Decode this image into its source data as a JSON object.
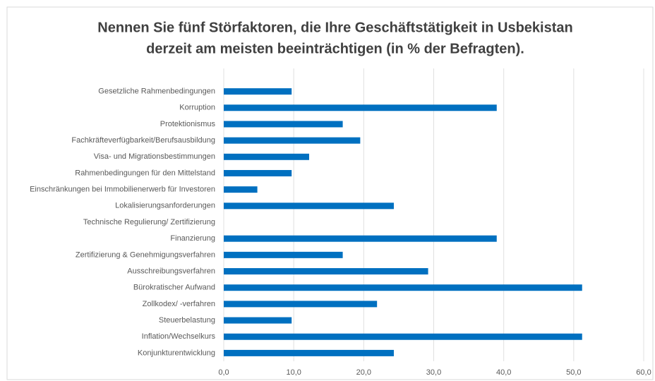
{
  "chart_data": {
    "type": "barh",
    "title": [
      "Nennen Sie fünf Störfaktoren, die Ihre Geschäftstätigkeit in Usbekistan",
      "derzeit am meisten beeinträchtigen (in % der Befragten)."
    ],
    "categories": [
      "Gesetzliche Rahmenbedingungen",
      "Korruption",
      "Protektionismus",
      "Fachkräfteverfügbarkeit/Berufsausbildung",
      "Visa- und Migrationsbestimmungen",
      "Rahmenbedingungen für den Mittelstand",
      "Einschränkungen bei Immobilienerwerb für Investoren",
      "Lokalisierungsanforderungen",
      "Technische Regulierung/ Zertifizierung",
      "Finanzierung",
      "Zertifizierung & Genehmigungsverfahren",
      "Ausschreibungsverfahren",
      "Bürokratischer Aufwand",
      "Zollkodex/ -verfahren",
      "Steuerbelastung",
      "Inflation/Wechselkurs",
      "Konjunkturentwicklung"
    ],
    "values": [
      9.7,
      39.0,
      17.0,
      19.5,
      12.2,
      9.7,
      4.8,
      24.3,
      0,
      39.0,
      17.0,
      29.2,
      51.2,
      21.9,
      9.7,
      51.2,
      24.3
    ],
    "color": "#0070c0",
    "xlim": [
      0,
      60
    ],
    "xticks": [
      {
        "value": 0,
        "label": "0,0"
      },
      {
        "value": 10,
        "label": "10,0"
      },
      {
        "value": 20,
        "label": "20,0"
      },
      {
        "value": 30,
        "label": "30,0"
      },
      {
        "value": 40,
        "label": "40,0"
      },
      {
        "value": 50,
        "label": "50,0"
      },
      {
        "value": 60,
        "label": "60,0"
      }
    ],
    "grid": true
  }
}
